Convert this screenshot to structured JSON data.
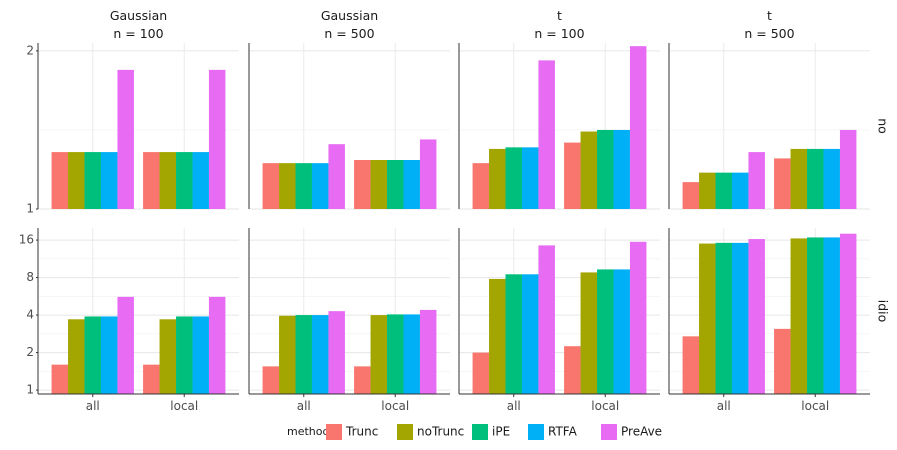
{
  "chart_data": {
    "type": "bar",
    "layout": "facet-grid",
    "columns": [
      {
        "line1": "Gaussian",
        "line2": "n = 100"
      },
      {
        "line1": "Gaussian",
        "line2": "n = 500"
      },
      {
        "line1": "t",
        "line2": "n = 100"
      },
      {
        "line1": "t",
        "line2": "n = 500"
      }
    ],
    "rows": [
      {
        "label": "no",
        "scale": "linear",
        "ylim": [
          1,
          2.05
        ],
        "yticks": [
          1,
          2
        ],
        "ytick_labels": [
          "1",
          "2"
        ]
      },
      {
        "label": "idio",
        "scale": "log2",
        "ylim": [
          0.93,
          20
        ],
        "yticks": [
          1,
          2,
          4,
          8,
          16
        ],
        "ytick_labels": [
          "1",
          "2",
          "4",
          "8",
          "16"
        ]
      }
    ],
    "categories": [
      "all",
      "local"
    ],
    "series_names": [
      "Trunc",
      "noTrunc",
      "iPE",
      "RTFA",
      "PreAve"
    ],
    "colors": [
      "#F8766D",
      "#A3A500",
      "#00BF7D",
      "#00B0F6",
      "#E76BF3"
    ],
    "legend": {
      "title": "method",
      "position": "bottom"
    },
    "values": [
      [
        [
          [
            1.36,
            1.36,
            1.36,
            1.36,
            1.88
          ],
          [
            1.36,
            1.36,
            1.36,
            1.36,
            1.88
          ]
        ],
        [
          [
            1.29,
            1.29,
            1.29,
            1.29,
            1.41
          ],
          [
            1.31,
            1.31,
            1.31,
            1.31,
            1.44
          ]
        ],
        [
          [
            1.29,
            1.38,
            1.39,
            1.39,
            1.94
          ],
          [
            1.42,
            1.49,
            1.5,
            1.5,
            2.03
          ]
        ],
        [
          [
            1.17,
            1.23,
            1.23,
            1.23,
            1.36
          ],
          [
            1.32,
            1.38,
            1.38,
            1.38,
            1.5
          ]
        ]
      ],
      [
        [
          [
            1.6,
            3.7,
            3.9,
            3.9,
            5.6
          ],
          [
            1.6,
            3.7,
            3.9,
            3.9,
            5.6
          ]
        ],
        [
          [
            1.55,
            3.95,
            4.0,
            4.0,
            4.3
          ],
          [
            1.55,
            4.0,
            4.05,
            4.05,
            4.4
          ]
        ],
        [
          [
            2.0,
            7.8,
            8.5,
            8.5,
            14.5
          ],
          [
            2.25,
            8.8,
            9.3,
            9.3,
            15.5
          ]
        ],
        [
          [
            2.7,
            15.0,
            15.2,
            15.2,
            16.3
          ],
          [
            3.1,
            16.5,
            16.8,
            16.8,
            18.0
          ]
        ]
      ]
    ]
  }
}
